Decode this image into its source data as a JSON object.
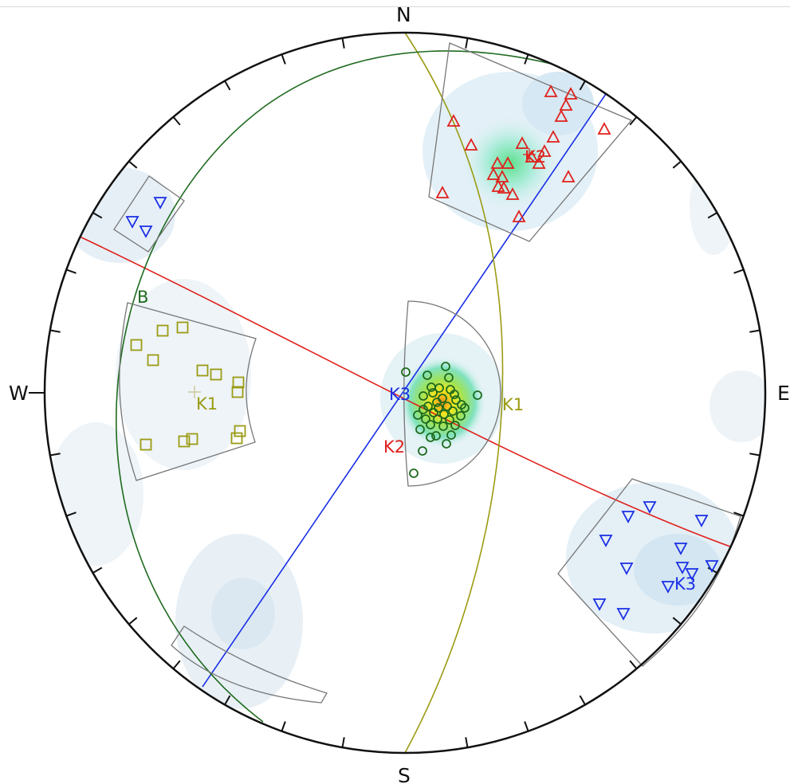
{
  "compass": {
    "north": "N",
    "south": "S",
    "east": "E",
    "west": "W"
  },
  "colors": {
    "k1": "#9b9b13",
    "k2": "#e0201c",
    "k3": "#1a2fe6",
    "b": "#1f6b1f",
    "circle_poles": "#1e6b1e",
    "window": "#777777"
  },
  "labels": {
    "k1_window": "K1",
    "k1_circle": "K1",
    "k2_pole": "K2",
    "k2_circle": "K2",
    "k3_pole": "K3",
    "k3_circle": "K3",
    "b_circle": "B"
  },
  "sets": [
    {
      "id": "K1",
      "symbol": "square",
      "color_key": "k1",
      "count": 18
    },
    {
      "id": "K2",
      "symbol": "triangle-up",
      "color_key": "k2",
      "count": 27
    },
    {
      "id": "K3",
      "symbol": "triangle-down",
      "color_key": "k3",
      "count": 15
    },
    {
      "id": "center",
      "symbol": "circle",
      "color_key": "circle_poles",
      "count": 40
    }
  ]
}
